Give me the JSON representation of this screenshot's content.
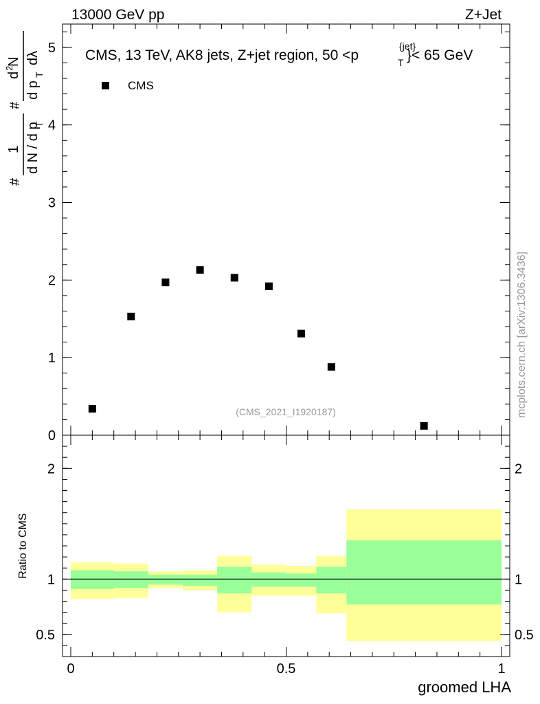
{
  "header": {
    "left": "13000 GeV pp",
    "right": "Z+Jet"
  },
  "side_label": "mcplots.cern.ch [arXiv:1306.3436]",
  "chart_data": [
    {
      "type": "scatter",
      "title": "CMS, 13 TeV, AK8 jets, Z+jet region, 50 <p",
      "title_sup": "{jet}",
      "title_sub": "T",
      "title_tail": "}< 65 GeV",
      "watermark": "(CMS_2021_I1920187)",
      "ylabel": "# 1/dN / d p_T # d²N / d p_T dλ",
      "xlim": [
        0,
        1
      ],
      "ylim": [
        0,
        5.3
      ],
      "yticks": [
        0,
        1,
        2,
        3,
        4,
        5
      ],
      "ytick_labels": [
        "0",
        "1",
        "2",
        "3",
        "4",
        "5"
      ],
      "legend": {
        "label": "CMS",
        "position": "top-left"
      },
      "series": [
        {
          "name": "CMS",
          "x": [
            0.05,
            0.14,
            0.22,
            0.3,
            0.38,
            0.46,
            0.535,
            0.605,
            0.82
          ],
          "y": [
            0.34,
            1.53,
            1.97,
            2.13,
            2.03,
            1.92,
            1.31,
            0.88,
            0.12
          ]
        }
      ]
    },
    {
      "type": "area",
      "ylabel": "Ratio to CMS",
      "xlabel": "groomed LHA",
      "xlim": [
        0,
        1
      ],
      "ylim": [
        0.3,
        2.3
      ],
      "xticks": [
        0,
        0.5,
        1
      ],
      "xtick_labels": [
        "0",
        "0.5",
        "1"
      ],
      "yticks": [
        0.5,
        1,
        2
      ],
      "ytick_labels": [
        "0.5",
        "1",
        "2"
      ],
      "reference_line": 1,
      "bin_edges": [
        0.0,
        0.1,
        0.18,
        0.26,
        0.34,
        0.42,
        0.5,
        0.57,
        0.64,
        1.0
      ],
      "band_outer": {
        "color": "#ffff99",
        "low": [
          0.82,
          0.83,
          0.92,
          0.9,
          0.7,
          0.85,
          0.85,
          0.69,
          0.44
        ],
        "high": [
          1.15,
          1.14,
          1.07,
          1.08,
          1.21,
          1.13,
          1.12,
          1.21,
          1.63
        ]
      },
      "band_inner": {
        "color": "#99ff99",
        "low": [
          0.91,
          0.92,
          0.95,
          0.94,
          0.87,
          0.93,
          0.93,
          0.87,
          0.77
        ],
        "high": [
          1.08,
          1.07,
          1.04,
          1.04,
          1.11,
          1.06,
          1.05,
          1.11,
          1.35
        ]
      }
    }
  ]
}
